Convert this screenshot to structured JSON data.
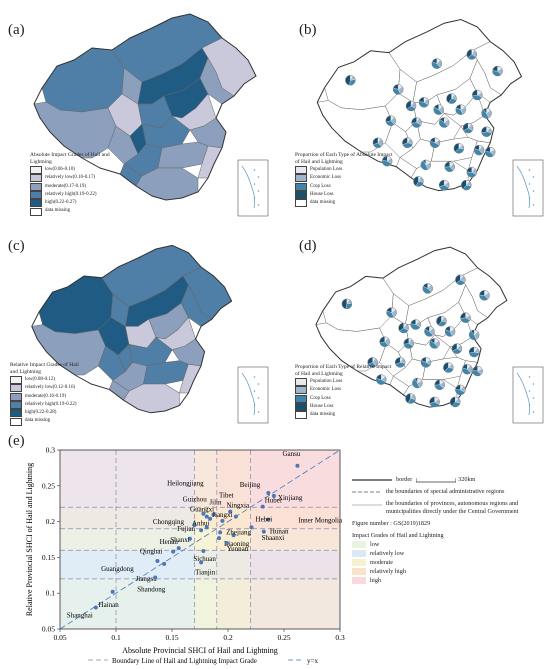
{
  "panels": {
    "a": {
      "label": "(a)",
      "legend_title": "Absolute Impact Grades of Hail and Lightning",
      "legend_items": [
        {
          "label": "low(0.06-0.10)",
          "color": "#f2f2f4"
        },
        {
          "label": "relatively low(0.10-0.17)",
          "color": "#c9c9db"
        },
        {
          "label": "moderate(0.17-0.19)",
          "color": "#8ca0bd"
        },
        {
          "label": "relatively high(0.19-0.22)",
          "color": "#4f7ea6"
        },
        {
          "label": "high(0.22-0.27)",
          "color": "#1f5b82"
        },
        {
          "label": "data missing",
          "color": "#ffffff"
        }
      ]
    },
    "b": {
      "label": "(b)",
      "legend_title": "Proportion of Each Type of Absolute Impact of Hail and Lightning",
      "legend_items": [
        {
          "label": "Population Loss",
          "color": "#e8e8ee"
        },
        {
          "label": "Economic Loss",
          "color": "#9eb6cc"
        },
        {
          "label": "Crop Loss",
          "color": "#3f86ad"
        },
        {
          "label": "House Loss",
          "color": "#1b4f70"
        },
        {
          "label": "data missing",
          "color": "#ffffff"
        }
      ]
    },
    "c": {
      "label": "(c)",
      "legend_title": "Relative Impact Grades of Hail and Lightning",
      "legend_items": [
        {
          "label": "low(0.08-0.12)",
          "color": "#f2f2f4"
        },
        {
          "label": "relatively low(0.12-0.16)",
          "color": "#c9c9db"
        },
        {
          "label": "moderate(0.16-0.19)",
          "color": "#8ca0bd"
        },
        {
          "label": "relatively high(0.19-0.22)",
          "color": "#4f7ea6"
        },
        {
          "label": "high(0.22-0.28)",
          "color": "#1f5b82"
        },
        {
          "label": "data missing",
          "color": "#ffffff"
        }
      ]
    },
    "d": {
      "label": "(d)",
      "legend_title": "Proportion of Each Type of Relative Impact of Hail and Lightning",
      "legend_items": [
        {
          "label": "Population Loss",
          "color": "#e8e8ee"
        },
        {
          "label": "Economic Loss",
          "color": "#9eb6cc"
        },
        {
          "label": "Crop Loss",
          "color": "#3f86ad"
        },
        {
          "label": "House Loss",
          "color": "#1b4f70"
        },
        {
          "label": "data missing",
          "color": "#ffffff"
        }
      ]
    },
    "e": {
      "label": "(e)"
    }
  },
  "right_legend": {
    "border_label": "border",
    "scale_label": "320km",
    "sar_label": "the boundaries of special administrative regions",
    "province_label": "the boundaries of provinces, autonomous regions and municipalities directly under the Central Government",
    "figure_number": "Figure number : GS(2019)1829",
    "grades_title": "Impact Grades of Hail and Lightning",
    "grades": [
      {
        "label": "low",
        "color": "#e9f3df"
      },
      {
        "label": "relatively low",
        "color": "#dbe9f5"
      },
      {
        "label": "moderate",
        "color": "#f6f1cf"
      },
      {
        "label": "relatively high",
        "color": "#fbe3c8"
      },
      {
        "label": "high",
        "color": "#f8d9dc"
      }
    ]
  },
  "chart_data": {
    "type": "scatter",
    "xlabel": "Absolute Provincial SHCI of Hail and Lightning",
    "ylabel": "Relative Provincial SHCI of Hail and Lightning",
    "xlim": [
      0.05,
      0.3
    ],
    "ylim": [
      0.05,
      0.3
    ],
    "xticks": [
      "0.05",
      "0.1",
      "0.15",
      "0.2",
      "0.25",
      "0.3"
    ],
    "yticks": [
      "0.05",
      "0.1",
      "0.15",
      "0.2",
      "0.25",
      "0.3"
    ],
    "x_grade_bounds": [
      0.1,
      0.17,
      0.19,
      0.22
    ],
    "y_grade_bounds": [
      0.12,
      0.16,
      0.19,
      0.22
    ],
    "bottom_legend": [
      "Boundary Line of Hail and Lightning Impact Grade",
      "y=x"
    ],
    "points": [
      {
        "name": "Gansu",
        "x": 0.262,
        "y": 0.278
      },
      {
        "name": "Beijing",
        "x": 0.236,
        "y": 0.24
      },
      {
        "name": "Xinjiang",
        "x": 0.241,
        "y": 0.236
      },
      {
        "name": "Hubei",
        "x": 0.231,
        "y": 0.221
      },
      {
        "name": "Inner Mongolia",
        "x": 0.236,
        "y": 0.203
      },
      {
        "name": "Hebei",
        "x": 0.221,
        "y": 0.192
      },
      {
        "name": "Hunan",
        "x": 0.232,
        "y": 0.186
      },
      {
        "name": "Shaanxi",
        "x": 0.205,
        "y": 0.181
      },
      {
        "name": "Tibet",
        "x": 0.202,
        "y": 0.214
      },
      {
        "name": "Ningxia",
        "x": 0.207,
        "y": 0.207
      },
      {
        "name": "Jilin",
        "x": 0.187,
        "y": 0.21
      },
      {
        "name": "Jiangxi",
        "x": 0.195,
        "y": 0.201
      },
      {
        "name": "Heilongjiang",
        "x": 0.178,
        "y": 0.211
      },
      {
        "name": "Guizhou",
        "x": 0.181,
        "y": 0.207
      },
      {
        "name": "Guangxi",
        "x": 0.184,
        "y": 0.204
      },
      {
        "name": "Chongqing",
        "x": 0.17,
        "y": 0.195
      },
      {
        "name": "Anhui",
        "x": 0.181,
        "y": 0.192
      },
      {
        "name": "Fujian",
        "x": 0.176,
        "y": 0.188
      },
      {
        "name": "Zhejiang",
        "x": 0.193,
        "y": 0.185
      },
      {
        "name": "Liaoning",
        "x": 0.192,
        "y": 0.177
      },
      {
        "name": "Shanxi",
        "x": 0.166,
        "y": 0.176
      },
      {
        "name": "Yunnan",
        "x": 0.199,
        "y": 0.17
      },
      {
        "name": "Henan",
        "x": 0.156,
        "y": 0.163
      },
      {
        "name": "Qinghai",
        "x": 0.151,
        "y": 0.158
      },
      {
        "name": "Sichuan",
        "x": 0.178,
        "y": 0.159
      },
      {
        "name": "Tianjin",
        "x": 0.176,
        "y": 0.143
      },
      {
        "name": "Guangdong",
        "x": 0.137,
        "y": 0.145
      },
      {
        "name": "Jiangsu",
        "x": 0.143,
        "y": 0.141
      },
      {
        "name": "Shandong",
        "x": 0.135,
        "y": 0.122
      },
      {
        "name": "Hainan",
        "x": 0.097,
        "y": 0.102
      },
      {
        "name": "Shanghai",
        "x": 0.082,
        "y": 0.08
      }
    ]
  }
}
